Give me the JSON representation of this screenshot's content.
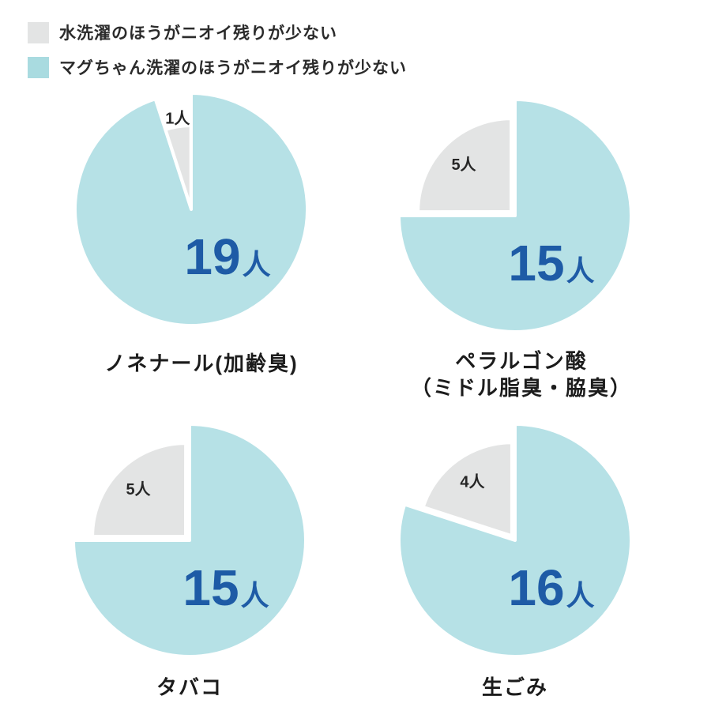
{
  "legend": {
    "position": "top-left",
    "items": [
      {
        "key": "water",
        "label": "水洗濯のほうがニオイ残りが少ない",
        "color": "#e3e4e4"
      },
      {
        "key": "magchan",
        "label": "マグちゃん洗濯のほうがニオイ残りが少ない",
        "color": "#a9dbe0"
      }
    ]
  },
  "colors": {
    "pie_blue": "#b6e1e6",
    "pie_gray": "#e3e4e4",
    "count_blue": "#1e5ba6",
    "gray_count_text": "#262626",
    "title_text": "#1c1c1c",
    "background": "#ffffff"
  },
  "unit": "人",
  "chart_data": [
    {
      "type": "pie",
      "title": "ノネナール(加齢臭)",
      "title_lines": [
        "ノネナール(加齢臭)"
      ],
      "total": 20,
      "slices": [
        {
          "key": "magchan",
          "label": "マグちゃん洗濯のほうがニオイ残りが少ない",
          "value": 19
        },
        {
          "key": "water",
          "label": "水洗濯のほうがニオイ残りが少ない",
          "value": 1
        }
      ],
      "layout": {
        "start_angle_deg": 0,
        "direction": "clockwise",
        "gray_label_outside": true,
        "gray_radius_ratio": 0.71
      }
    },
    {
      "type": "pie",
      "title": "ペラルゴン酸（ミドル脂臭・脇臭）",
      "title_lines": [
        "ペラルゴン酸",
        "（ミドル脂臭・脇臭）"
      ],
      "total": 20,
      "slices": [
        {
          "key": "magchan",
          "label": "マグちゃん洗濯のほうがニオイ残りが少ない",
          "value": 15
        },
        {
          "key": "water",
          "label": "水洗濯のほうがニオイ残りが少ない",
          "value": 5
        }
      ],
      "layout": {
        "start_angle_deg": 0,
        "direction": "clockwise",
        "gray_label_outside": false,
        "gray_radius_ratio": 0.8
      }
    },
    {
      "type": "pie",
      "title": "タバコ",
      "title_lines": [
        "タバコ"
      ],
      "total": 20,
      "slices": [
        {
          "key": "magchan",
          "label": "マグちゃん洗濯のほうがニオイ残りが少ない",
          "value": 15
        },
        {
          "key": "water",
          "label": "水洗濯のほうがニオイ残りが少ない",
          "value": 5
        }
      ],
      "layout": {
        "start_angle_deg": 0,
        "direction": "clockwise",
        "gray_label_outside": false,
        "gray_radius_ratio": 0.8
      }
    },
    {
      "type": "pie",
      "title": "生ごみ",
      "title_lines": [
        "生ごみ"
      ],
      "total": 20,
      "slices": [
        {
          "key": "magchan",
          "label": "マグちゃん洗濯のほうがニオイ残りが少ない",
          "value": 16
        },
        {
          "key": "water",
          "label": "水洗濯のほうがニオイ残りが少ない",
          "value": 4
        }
      ],
      "layout": {
        "start_angle_deg": 0,
        "direction": "clockwise",
        "gray_label_outside": false,
        "gray_radius_ratio": 0.8
      }
    }
  ]
}
